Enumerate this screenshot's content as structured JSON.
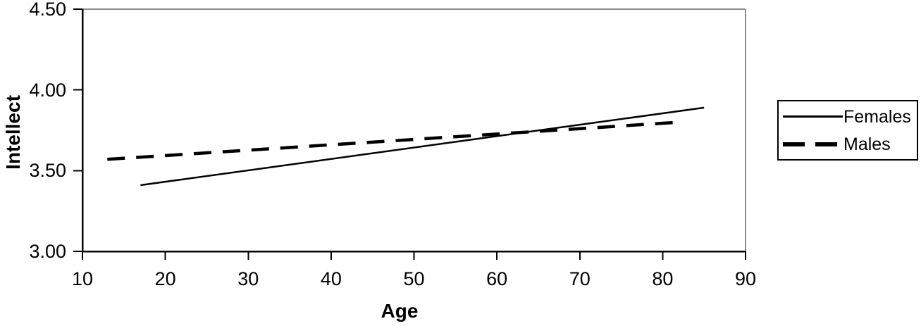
{
  "chart_data": {
    "type": "line",
    "title": "",
    "xlabel": "Age",
    "ylabel": "Intellect",
    "xlim": [
      10,
      90
    ],
    "ylim": [
      3.0,
      4.5
    ],
    "x_ticks": [
      10,
      20,
      30,
      40,
      50,
      60,
      70,
      80,
      90
    ],
    "x_tick_labels": [
      "10",
      "20",
      "30",
      "40",
      "50",
      "60",
      "70",
      "80",
      "90"
    ],
    "y_ticks": [
      3.0,
      3.5,
      4.0,
      4.5
    ],
    "y_tick_labels": [
      "3.00",
      "3.50",
      "4.00",
      "4.50"
    ],
    "grid": false,
    "legend_position": "right",
    "series": [
      {
        "name": "Females",
        "style": "solid",
        "color": "#000000",
        "points": [
          [
            17,
            3.41
          ],
          [
            85,
            3.89
          ]
        ]
      },
      {
        "name": "Males",
        "style": "dashed",
        "color": "#000000",
        "points": [
          [
            13,
            3.57
          ],
          [
            82,
            3.8
          ]
        ]
      }
    ]
  },
  "colors": {
    "background": "#ffffff",
    "axis": "#000000",
    "frame": "#8c8c8c",
    "text": "#000000",
    "line": "#000000"
  }
}
